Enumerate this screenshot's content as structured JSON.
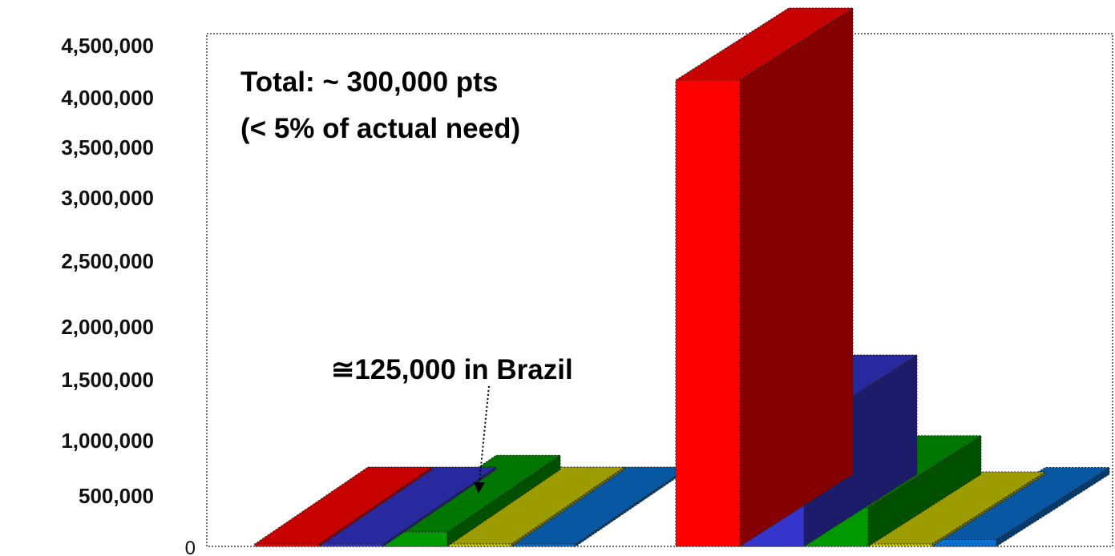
{
  "chart_data": {
    "type": "bar",
    "style": "3d",
    "ylim": [
      0,
      4500000
    ],
    "y_ticks": [
      {
        "value": 0,
        "label": "0"
      },
      {
        "value": 500000,
        "label": "500,000"
      },
      {
        "value": 1000000,
        "label": "1,000,000"
      },
      {
        "value": 1500000,
        "label": "1,500,000"
      },
      {
        "value": 2000000,
        "label": "2,000,000"
      },
      {
        "value": 2500000,
        "label": "2,500,000"
      },
      {
        "value": 3000000,
        "label": "3,000,000"
      },
      {
        "value": 3500000,
        "label": "3,500,000"
      },
      {
        "value": 4000000,
        "label": "4,000,000"
      },
      {
        "value": 4500000,
        "label": "4,500,000"
      }
    ],
    "groups": 2,
    "series": [
      {
        "color": "#ff0000",
        "values": [
          0,
          4100000
        ]
      },
      {
        "color": "#3535cc",
        "values": [
          0,
          1050000
        ]
      },
      {
        "color": "#009900",
        "values": [
          125000,
          340000
        ]
      },
      {
        "color": "#c8c800",
        "values": [
          0,
          0
        ]
      },
      {
        "color": "#0a70d0",
        "values": [
          0,
          60000
        ]
      }
    ],
    "annotations": [
      {
        "text": "Total: ~ 300,000 pts"
      },
      {
        "text": "(< 5% of actual need)"
      },
      {
        "text": "≅125,000 in Brazil"
      }
    ]
  }
}
